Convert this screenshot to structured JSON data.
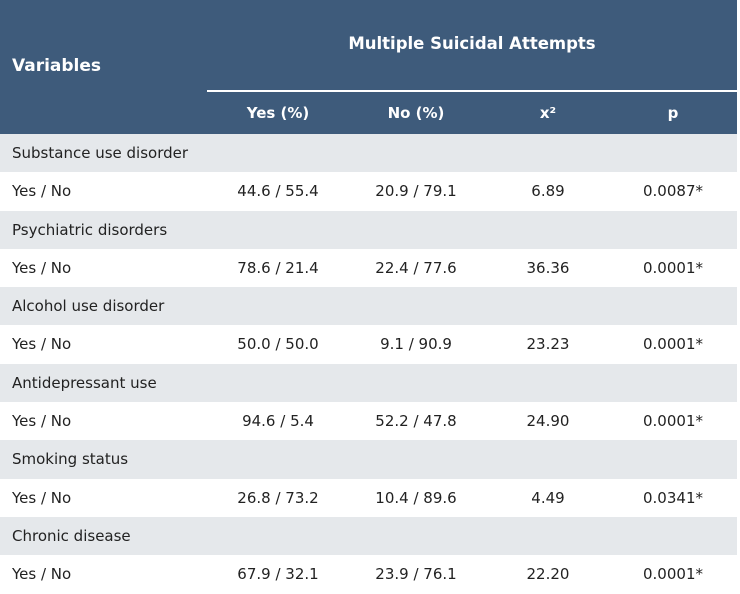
{
  "header": {
    "variables": "Variables",
    "group": "Multiple Suicidal Attempts",
    "columns": [
      "Yes (%)",
      "No (%)",
      "x²",
      "p"
    ]
  },
  "colors": {
    "header_bg": "#3e5b7b",
    "category_bg": "#e5e8eb"
  },
  "rows": [
    {
      "category": "Substance use disorder",
      "label": "Yes / No",
      "yes": "44.6 / 55.4",
      "no": "20.9 / 79.1",
      "chi2": "6.89",
      "p": "0.0087*"
    },
    {
      "category": "Psychiatric disorders",
      "label": "Yes / No",
      "yes": "78.6 / 21.4",
      "no": "22.4 / 77.6",
      "chi2": "36.36",
      "p": "0.0001*"
    },
    {
      "category": "Alcohol use disorder",
      "label": "Yes / No",
      "yes": "50.0 / 50.0",
      "no": "9.1 / 90.9",
      "chi2": "23.23",
      "p": "0.0001*"
    },
    {
      "category": "Antidepressant use",
      "label": "Yes / No",
      "yes": "94.6 / 5.4",
      "no": "52.2 / 47.8",
      "chi2": "24.90",
      "p": "0.0001*"
    },
    {
      "category": "Smoking status",
      "label": "Yes / No",
      "yes": "26.8 / 73.2",
      "no": "10.4 / 89.6",
      "chi2": "4.49",
      "p": "0.0341*"
    },
    {
      "category": "Chronic disease",
      "label": "Yes / No",
      "yes": "67.9 / 32.1",
      "no": "23.9 / 76.1",
      "chi2": "22.20",
      "p": "0.0001*"
    }
  ]
}
